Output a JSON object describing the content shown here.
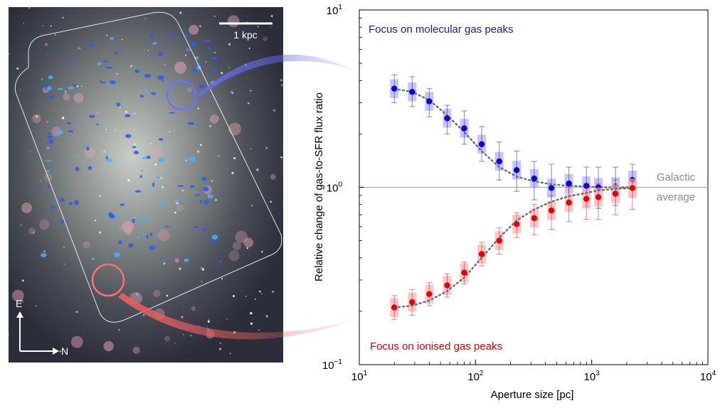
{
  "image_panel": {
    "scale_bar_label": "1 kpc",
    "compass_e": "E",
    "compass_n": "N"
  },
  "chart_data": {
    "type": "scatter",
    "title": "",
    "xlabel": "Aperture size [pc]",
    "ylabel": "Relative change of gas-to-SFR flux ratio",
    "xscale": "log",
    "yscale": "log",
    "xlim": [
      10,
      10000
    ],
    "ylim": [
      0.1,
      10
    ],
    "x_ticks": [
      {
        "value": 10,
        "base": "10",
        "exp": "1"
      },
      {
        "value": 100,
        "base": "10",
        "exp": "2"
      },
      {
        "value": 1000,
        "base": "10",
        "exp": "3"
      },
      {
        "value": 10000,
        "base": "10",
        "exp": "4"
      }
    ],
    "y_ticks": [
      {
        "value": 0.1,
        "base": "10",
        "exp": "−1"
      },
      {
        "value": 1,
        "base": "10",
        "exp": "0"
      },
      {
        "value": 10,
        "base": "10",
        "exp": "1"
      }
    ],
    "reference_line": {
      "y": 1,
      "label_line1": "Galactic",
      "label_line2": "average"
    },
    "x": [
      20,
      28.5,
      40,
      57,
      80,
      113,
      160,
      226,
      320,
      450,
      636,
      900,
      1140,
      1600,
      2240
    ],
    "series": [
      {
        "annotation": "Focus on molecular gas peaks",
        "color": "#0000e6",
        "light_color": "#b3b3ff",
        "values": [
          3.6,
          3.45,
          3.05,
          2.45,
          2.15,
          1.75,
          1.4,
          1.25,
          1.12,
          0.99,
          1.05,
          1.02,
          1.0,
          1.01,
          1.1
        ],
        "err_low": [
          3.0,
          2.85,
          2.5,
          2.0,
          1.75,
          1.4,
          1.1,
          0.95,
          0.85,
          0.78,
          0.8,
          0.78,
          0.76,
          0.79,
          0.88
        ],
        "err_high": [
          4.3,
          4.2,
          3.6,
          2.9,
          2.7,
          2.2,
          1.8,
          1.6,
          1.4,
          1.35,
          1.3,
          1.3,
          1.3,
          1.3,
          1.35
        ],
        "model": [
          3.6,
          3.45,
          3.1,
          2.55,
          2.05,
          1.6,
          1.3,
          1.15,
          1.08,
          1.04,
          1.02,
          1.01,
          1.0,
          1.0,
          1.0
        ]
      },
      {
        "annotation": "Focus on ionised gas peaks",
        "color": "#e60000",
        "light_color": "#ffb3b3",
        "values": [
          0.21,
          0.225,
          0.25,
          0.28,
          0.33,
          0.42,
          0.5,
          0.62,
          0.67,
          0.74,
          0.82,
          0.86,
          0.88,
          0.92,
          0.99
        ],
        "err_low": [
          0.18,
          0.19,
          0.215,
          0.24,
          0.285,
          0.36,
          0.42,
          0.52,
          0.54,
          0.58,
          0.64,
          0.66,
          0.66,
          0.7,
          0.75
        ],
        "err_high": [
          0.245,
          0.265,
          0.29,
          0.325,
          0.38,
          0.49,
          0.59,
          0.72,
          0.8,
          0.9,
          1.0,
          1.05,
          1.05,
          1.1,
          1.1
        ],
        "model": [
          0.21,
          0.215,
          0.23,
          0.26,
          0.31,
          0.4,
          0.52,
          0.65,
          0.75,
          0.83,
          0.89,
          0.93,
          0.96,
          0.98,
          0.99
        ]
      }
    ],
    "grid": false,
    "legend": "none"
  }
}
